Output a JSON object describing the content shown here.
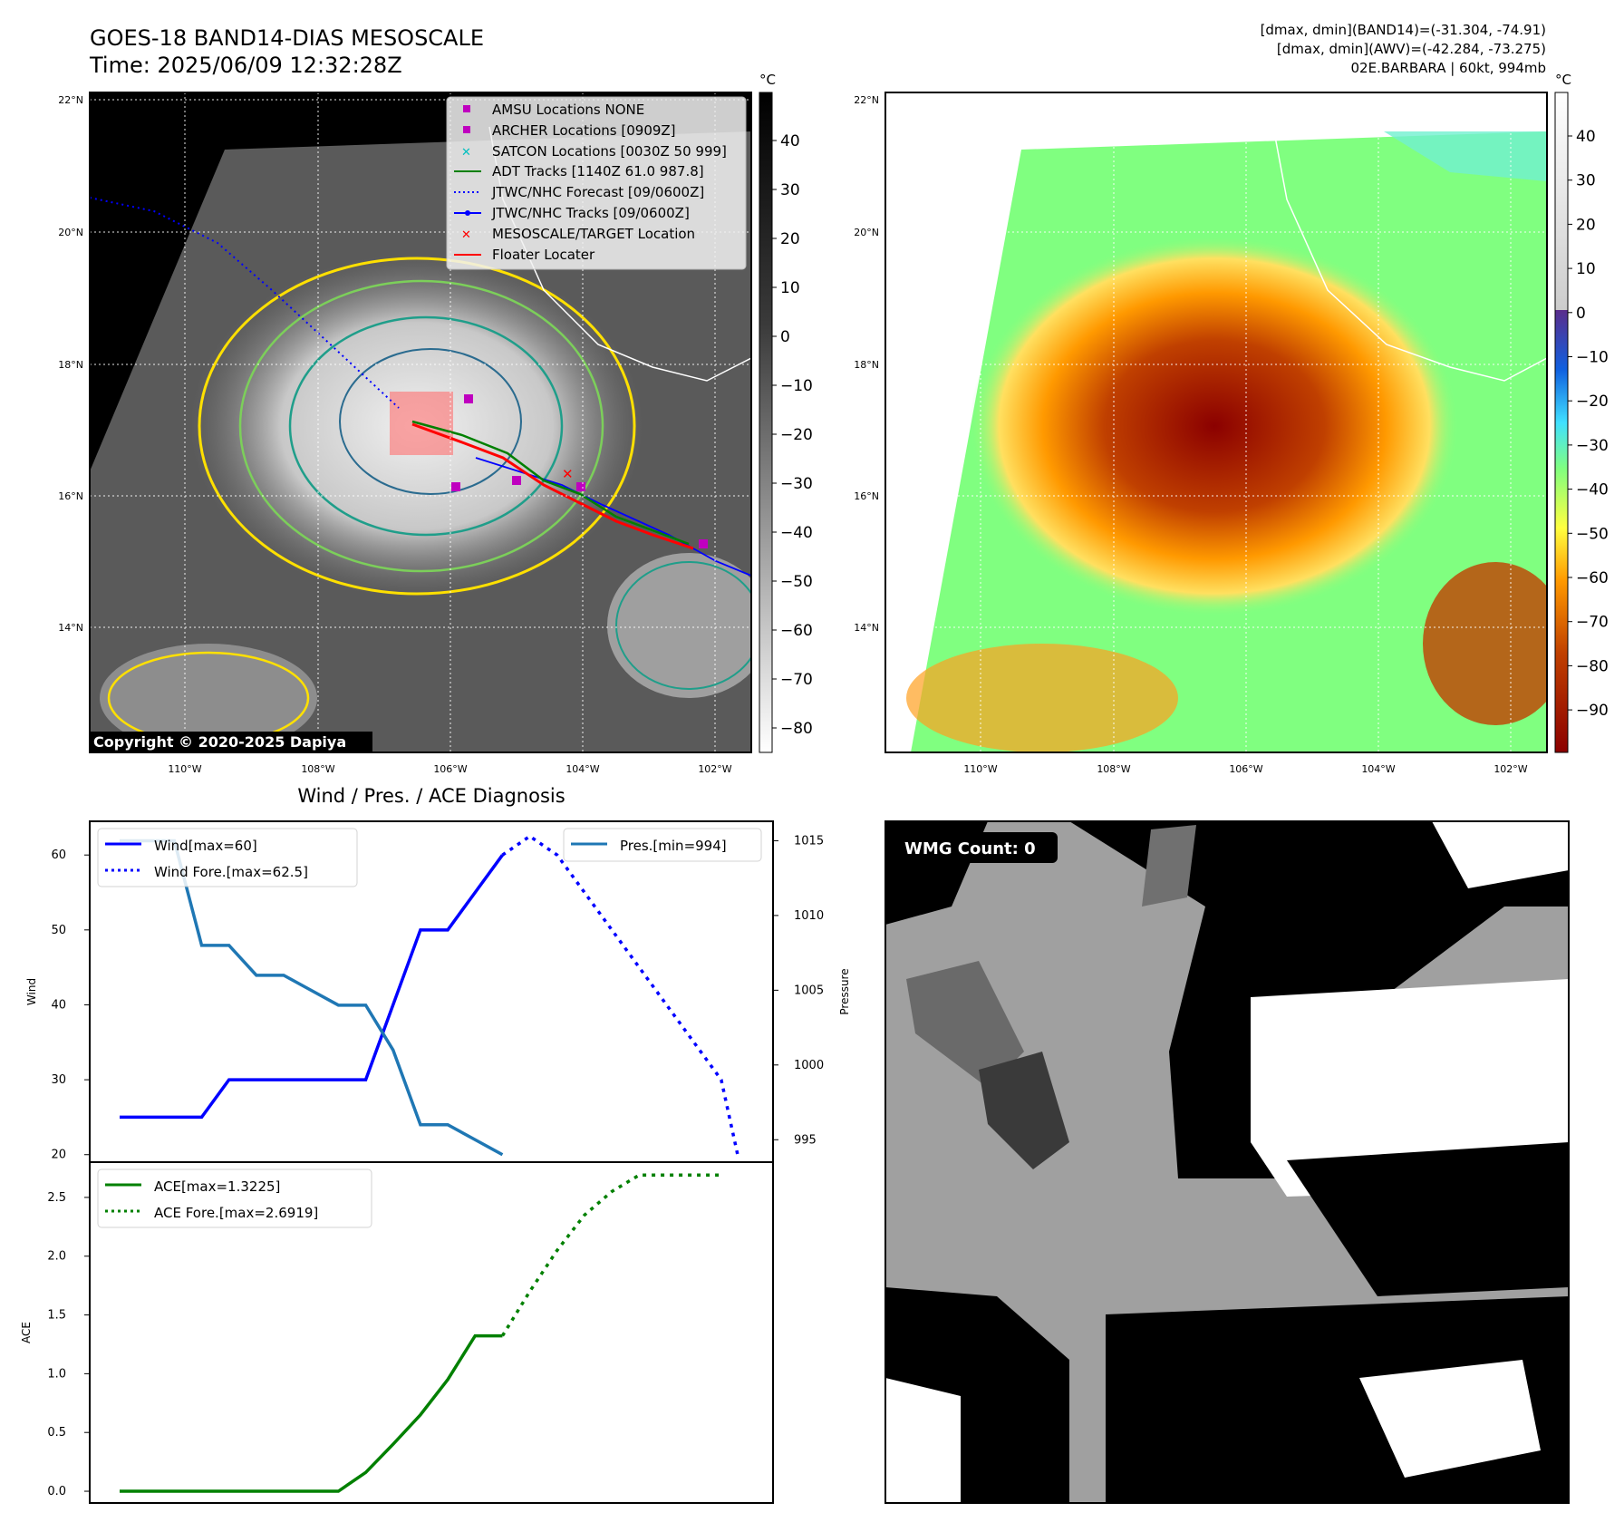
{
  "header": {
    "title_line1": "GOES-18 BAND14-DIAS MESOSCALE",
    "title_line2": "Time: 2025/06/09 12:32:28Z",
    "info_line1": "[dmax, dmin](BAND14)=(-31.304, -74.91)",
    "info_line2": "[dmax, dmin](AWV)=(-42.284, -73.275)",
    "info_line3": "02E.BARBARA | 60kt, 994mb"
  },
  "maps": {
    "lon_ticks": [
      "110°W",
      "108°W",
      "106°W",
      "104°W",
      "102°W"
    ],
    "lat_ticks": [
      "22°N",
      "20°N",
      "18°N",
      "16°N",
      "14°N"
    ],
    "copyright": "Copyright © 2020-2025 Dapiya",
    "colors": {
      "ocean_dark": "#000000",
      "land_line": "#ffffff"
    }
  },
  "colorbar_left": {
    "unit": "°C",
    "ticks": [
      "40",
      "30",
      "20",
      "10",
      "0",
      "−10",
      "−20",
      "−30",
      "−40",
      "−50",
      "−60",
      "−70",
      "−80"
    ]
  },
  "colorbar_right": {
    "unit": "°C",
    "ticks": [
      "40",
      "30",
      "20",
      "10",
      "0",
      "−10",
      "−20",
      "−30",
      "−40",
      "−50",
      "−60",
      "−70",
      "−80",
      "−90"
    ]
  },
  "legend_map": {
    "items": [
      {
        "label": "AMSU Locations NONE",
        "marker": "square",
        "color": "#bf00bf"
      },
      {
        "label": "ARCHER Locations [0909Z]",
        "marker": "square",
        "color": "#bf00bf"
      },
      {
        "label": "SATCON Locations [0030Z 50 999]",
        "marker": "x",
        "color": "#00bfbf"
      },
      {
        "label": "ADT Tracks [1140Z 61.0 987.8]",
        "marker": "line",
        "color": "#008000"
      },
      {
        "label": "JTWC/NHC Forecast [09/0600Z]",
        "marker": "dotted",
        "color": "#0000ff"
      },
      {
        "label": "JTWC/NHC Tracks [09/0600Z]",
        "marker": "line-dot",
        "color": "#0000ff"
      },
      {
        "label": "MESOSCALE/TARGET Location",
        "marker": "x",
        "color": "#ff0000"
      },
      {
        "label": "Floater Locater",
        "marker": "line",
        "color": "#ff0000"
      }
    ]
  },
  "wmg": {
    "label": "WMG Count: 0"
  },
  "chart_data": [
    {
      "type": "line",
      "title": "Wind / Pres. / ACE Diagnosis",
      "ylabel": "Wind",
      "ylabel_right": "Pressure",
      "ylim": [
        19,
        64.5
      ],
      "ylim_right": [
        993.5,
        1016.3
      ],
      "yticks": [
        20,
        30,
        40,
        50,
        60
      ],
      "yticks_right": [
        995,
        1000,
        1005,
        1010,
        1015
      ],
      "series": [
        {
          "name": "Wind[max=60]",
          "color": "#0000ff",
          "style": "solid",
          "axis": "left",
          "x": [
            0,
            1,
            2,
            3,
            4,
            5,
            6,
            7,
            8,
            9,
            10,
            11,
            12,
            13,
            14
          ],
          "values": [
            25,
            25,
            25,
            25,
            30,
            30,
            30,
            30,
            30,
            30,
            40,
            50,
            50,
            55,
            60
          ]
        },
        {
          "name": "Wind Fore.[max=62.5]",
          "color": "#0000ff",
          "style": "dotted",
          "axis": "left",
          "x": [
            14,
            15,
            16,
            17,
            18,
            19,
            20,
            21,
            22
          ],
          "values": [
            60,
            62.5,
            60,
            55,
            50,
            45,
            40,
            35,
            30
          ],
          "x_end": 22.6,
          "value_end": 20
        },
        {
          "name": "Pres.[min=994]",
          "color": "#1f77b4",
          "style": "solid",
          "axis": "right",
          "x": [
            0,
            1,
            2,
            3,
            4,
            5,
            6,
            7,
            8,
            9,
            10,
            11,
            12,
            13,
            14
          ],
          "values": [
            1015,
            1015,
            1015,
            1008,
            1008,
            1006,
            1006,
            1005,
            1004,
            1004,
            1001,
            996,
            996,
            995,
            994
          ]
        }
      ]
    },
    {
      "type": "line",
      "ylabel": "ACE",
      "ylim": [
        -0.1,
        2.8
      ],
      "yticks": [
        0.0,
        0.5,
        1.0,
        1.5,
        2.0,
        2.5
      ],
      "series": [
        {
          "name": "ACE[max=1.3225]",
          "color": "#008000",
          "style": "solid",
          "x": [
            0,
            1,
            2,
            3,
            4,
            5,
            6,
            7,
            8,
            9,
            10,
            11,
            12,
            13,
            14
          ],
          "values": [
            0,
            0,
            0,
            0,
            0,
            0,
            0,
            0,
            0,
            0.16,
            0.4,
            0.65,
            0.95,
            1.3225,
            1.3225
          ]
        },
        {
          "name": "ACE Fore.[max=2.6919]",
          "color": "#008000",
          "style": "dotted",
          "x": [
            14,
            15,
            16,
            17,
            18,
            19,
            20,
            21,
            22
          ],
          "values": [
            1.3225,
            1.7,
            2.05,
            2.35,
            2.55,
            2.69,
            2.69,
            2.69,
            2.69
          ]
        }
      ]
    }
  ]
}
